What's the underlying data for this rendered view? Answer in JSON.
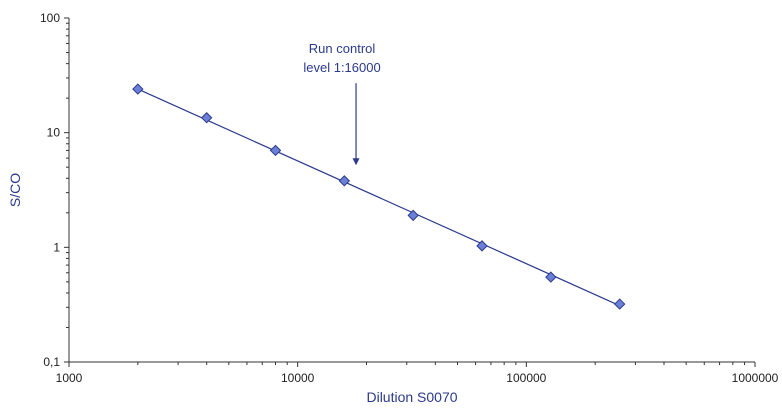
{
  "chart_data": {
    "type": "scatter",
    "title": "",
    "xlabel": "Dilution S0070",
    "ylabel": "S/CO",
    "x_scale": "log",
    "y_scale": "log",
    "xlim": [
      1000,
      1000000
    ],
    "ylim": [
      0.1,
      100
    ],
    "x_ticks": [
      {
        "value": 1000,
        "label": "1000"
      },
      {
        "value": 10000,
        "label": "10000"
      },
      {
        "value": 100000,
        "label": "100000"
      },
      {
        "value": 1000000,
        "label": "1000000"
      }
    ],
    "y_ticks": [
      {
        "value": 0.1,
        "label": "0,1"
      },
      {
        "value": 1,
        "label": "1"
      },
      {
        "value": 10,
        "label": "10"
      },
      {
        "value": 100,
        "label": "100"
      }
    ],
    "grid": false,
    "legend": "none",
    "marker_color": "#6b7fd6",
    "line_color": "#2b3a8c",
    "series": [
      {
        "x": [
          2000,
          4000,
          8000,
          16000,
          32000,
          64000,
          128000,
          256000
        ],
        "y": [
          24,
          13.5,
          7,
          3.8,
          1.9,
          1.03,
          0.55,
          0.32
        ]
      }
    ],
    "trendline": {
      "x": [
        2000,
        256000
      ],
      "y": [
        24,
        0.31
      ]
    },
    "annotation": {
      "lines": [
        "Run control",
        "level 1:16000"
      ],
      "arrow_x": 18000,
      "arrow_y_start": 27,
      "arrow_y_end": 5.2
    }
  }
}
